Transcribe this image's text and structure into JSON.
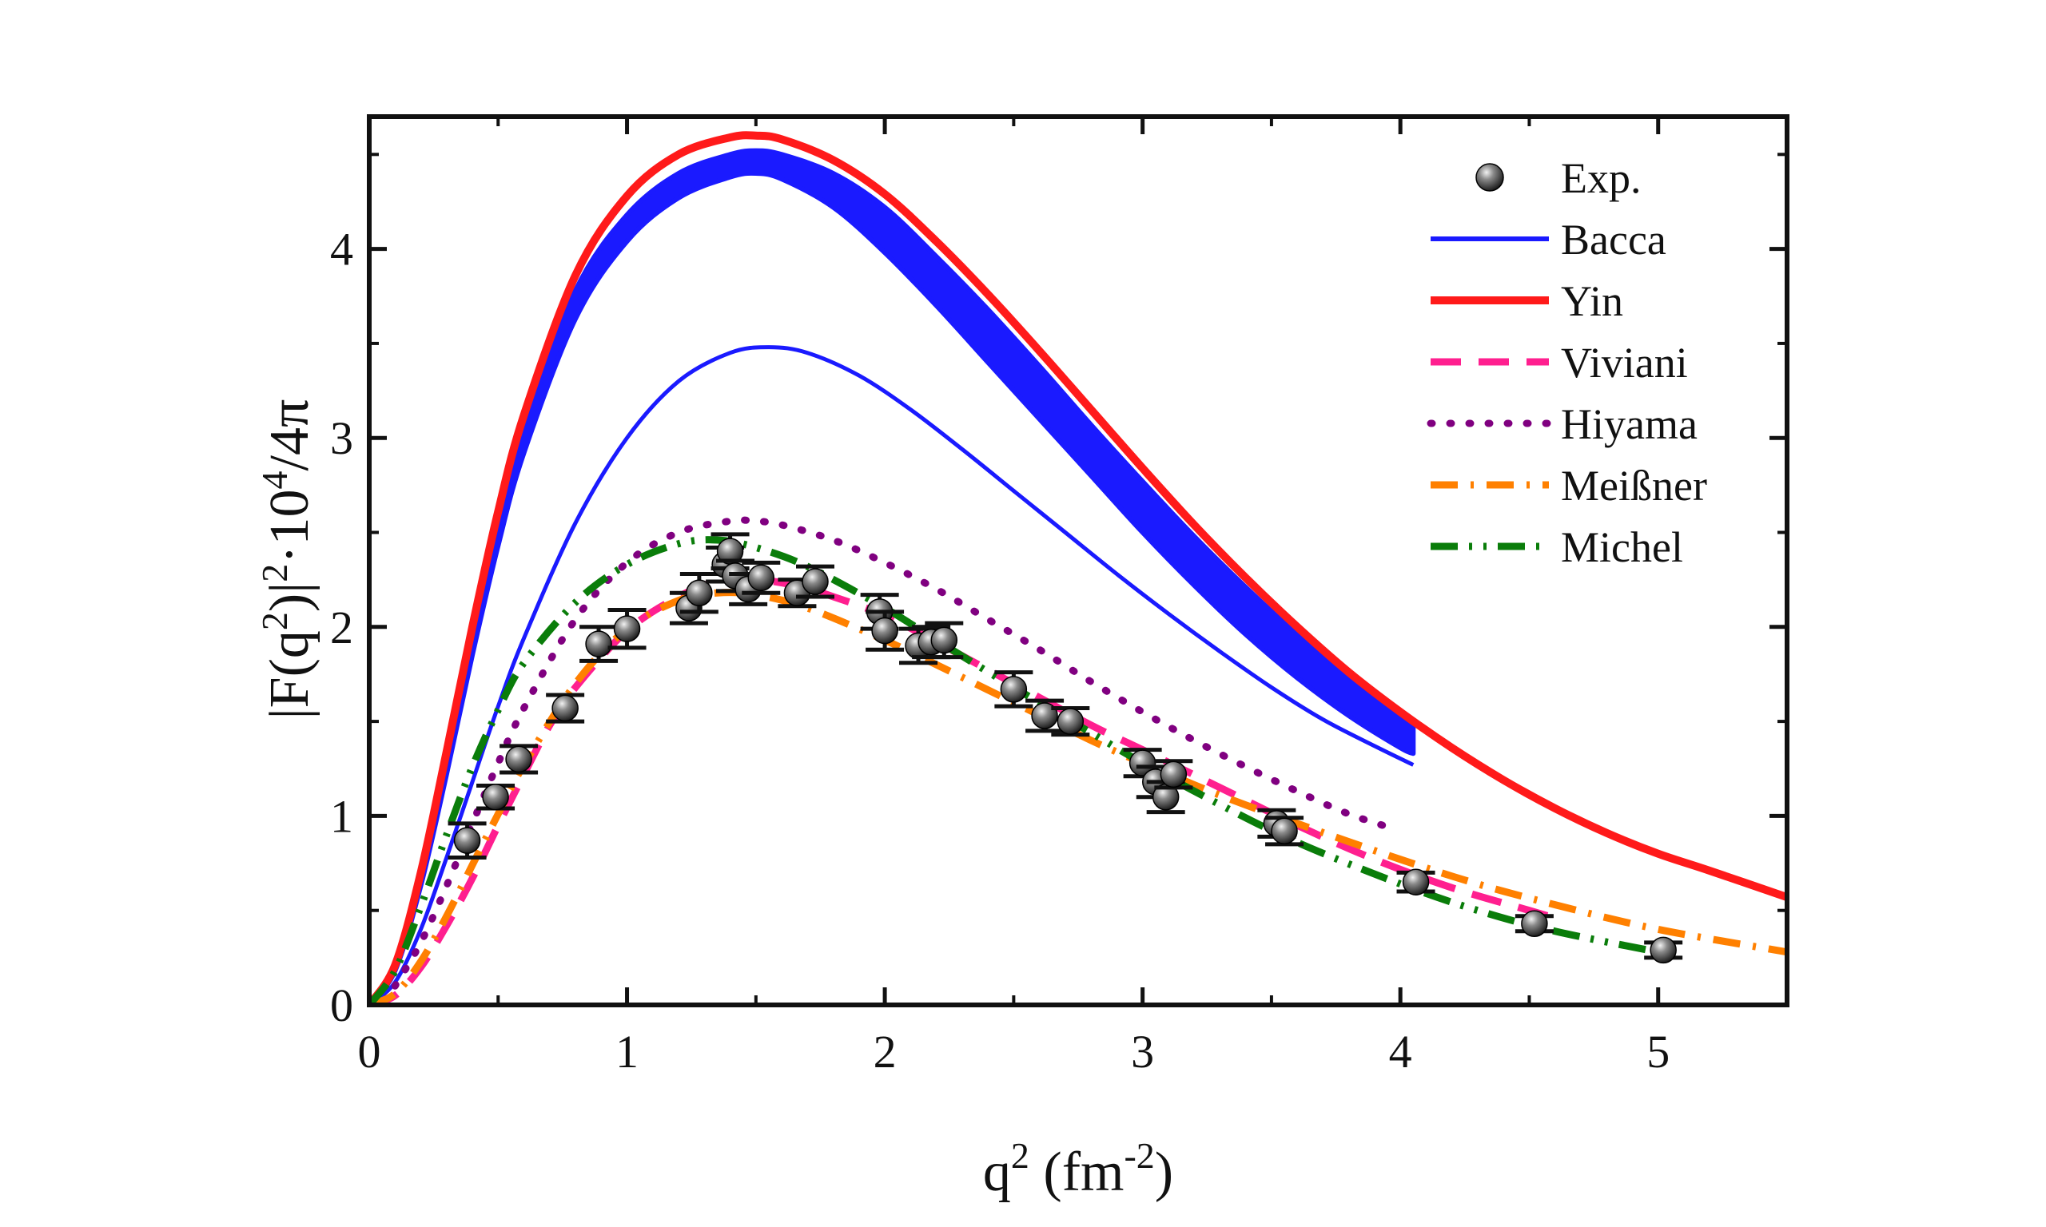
{
  "chart_data": {
    "type": "line",
    "title": "",
    "xlabel": {
      "base": "q",
      "sup": "2",
      "unit_open": " (fm",
      "unit_sup": "-2",
      "unit_close": ")"
    },
    "ylabel": {
      "part1": "|F(q",
      "sup1": "2",
      "part2": ")|",
      "sup2": "2",
      "part3": "·10",
      "sup3": "4",
      "part4": "/4π"
    },
    "xlim": [
      0,
      5.5
    ],
    "ylim": [
      0,
      4.7
    ],
    "x_ticks": [
      "0",
      "1",
      "2",
      "3",
      "4",
      "5"
    ],
    "y_ticks": [
      "0",
      "1",
      "2",
      "3",
      "4"
    ],
    "legend_position": "top-right",
    "legend": [
      "Exp.",
      "Bacca",
      "Yin",
      "Viviani",
      "Hiyama",
      "Meißner",
      "Michel"
    ],
    "colors": {
      "exp": "#111111",
      "bacca": "#1a1aff",
      "yin": "#ff1a1a",
      "viviani": "#ff1f8f",
      "hiyama": "#800080",
      "meissner": "#ff8000",
      "michel": "#0a7d0a"
    },
    "experiment": {
      "name": "Exp.",
      "points": [
        {
          "x": 0.38,
          "y": 0.87,
          "err": 0.09
        },
        {
          "x": 0.49,
          "y": 1.1,
          "err": 0.06
        },
        {
          "x": 0.58,
          "y": 1.3,
          "err": 0.07
        },
        {
          "x": 0.76,
          "y": 1.57,
          "err": 0.07
        },
        {
          "x": 0.89,
          "y": 1.91,
          "err": 0.09
        },
        {
          "x": 1.0,
          "y": 1.99,
          "err": 0.1
        },
        {
          "x": 1.24,
          "y": 2.1,
          "err": 0.08
        },
        {
          "x": 1.28,
          "y": 2.18,
          "err": 0.1
        },
        {
          "x": 1.38,
          "y": 2.33,
          "err": 0.09
        },
        {
          "x": 1.4,
          "y": 2.4,
          "err": 0.09
        },
        {
          "x": 1.42,
          "y": 2.27,
          "err": 0.08
        },
        {
          "x": 1.47,
          "y": 2.2,
          "err": 0.08
        },
        {
          "x": 1.52,
          "y": 2.26,
          "err": 0.08
        },
        {
          "x": 1.66,
          "y": 2.18,
          "err": 0.07
        },
        {
          "x": 1.73,
          "y": 2.24,
          "err": 0.08
        },
        {
          "x": 1.98,
          "y": 2.08,
          "err": 0.09
        },
        {
          "x": 2.0,
          "y": 1.98,
          "err": 0.1
        },
        {
          "x": 2.13,
          "y": 1.9,
          "err": 0.09
        },
        {
          "x": 2.18,
          "y": 1.92,
          "err": 0.08
        },
        {
          "x": 2.23,
          "y": 1.93,
          "err": 0.09
        },
        {
          "x": 2.5,
          "y": 1.67,
          "err": 0.09
        },
        {
          "x": 2.62,
          "y": 1.53,
          "err": 0.08
        },
        {
          "x": 2.72,
          "y": 1.5,
          "err": 0.07
        },
        {
          "x": 3.0,
          "y": 1.28,
          "err": 0.07
        },
        {
          "x": 3.05,
          "y": 1.18,
          "err": 0.08
        },
        {
          "x": 3.09,
          "y": 1.1,
          "err": 0.08
        },
        {
          "x": 3.12,
          "y": 1.22,
          "err": 0.07
        },
        {
          "x": 3.52,
          "y": 0.96,
          "err": 0.07
        },
        {
          "x": 3.55,
          "y": 0.92,
          "err": 0.07
        },
        {
          "x": 4.06,
          "y": 0.65,
          "err": 0.05
        },
        {
          "x": 4.52,
          "y": 0.43,
          "err": 0.04
        },
        {
          "x": 5.02,
          "y": 0.29,
          "err": 0.04
        }
      ]
    },
    "series": [
      {
        "name": "Bacca",
        "style": "band",
        "x": [
          0,
          0.1,
          0.2,
          0.3,
          0.4,
          0.5,
          0.6,
          0.8,
          1.0,
          1.2,
          1.4,
          1.5,
          1.6,
          1.8,
          2.0,
          2.2,
          2.4,
          2.6,
          2.8,
          3.0,
          3.2,
          3.4,
          3.6,
          3.8,
          4.0,
          4.05
        ],
        "upper": [
          0,
          0.2,
          0.68,
          1.3,
          1.95,
          2.55,
          3.05,
          3.78,
          4.18,
          4.4,
          4.5,
          4.52,
          4.5,
          4.4,
          4.22,
          3.96,
          3.68,
          3.38,
          3.07,
          2.77,
          2.48,
          2.21,
          1.96,
          1.74,
          1.55,
          1.5
        ],
        "lower": [
          0,
          0.18,
          0.63,
          1.22,
          1.85,
          2.43,
          2.92,
          3.63,
          4.04,
          4.27,
          4.38,
          4.4,
          4.37,
          4.22,
          3.98,
          3.7,
          3.4,
          3.1,
          2.8,
          2.5,
          2.22,
          1.96,
          1.73,
          1.53,
          1.36,
          1.33
        ]
      },
      {
        "name": "Bacca (lower curve)",
        "style": "solid-thin",
        "x": [
          0,
          0.1,
          0.2,
          0.3,
          0.4,
          0.5,
          0.6,
          0.8,
          1.0,
          1.2,
          1.4,
          1.55,
          1.7,
          1.9,
          2.1,
          2.3,
          2.5,
          2.7,
          2.9,
          3.1,
          3.3,
          3.5,
          3.7,
          3.9,
          4.05
        ],
        "y": [
          0,
          0.12,
          0.4,
          0.78,
          1.18,
          1.58,
          1.94,
          2.55,
          3.0,
          3.3,
          3.45,
          3.48,
          3.45,
          3.33,
          3.15,
          2.94,
          2.72,
          2.5,
          2.28,
          2.07,
          1.87,
          1.68,
          1.51,
          1.37,
          1.27
        ]
      },
      {
        "name": "Yin",
        "style": "solid",
        "x": [
          0,
          0.1,
          0.2,
          0.3,
          0.4,
          0.5,
          0.6,
          0.8,
          1.0,
          1.2,
          1.4,
          1.5,
          1.6,
          1.8,
          2.0,
          2.2,
          2.4,
          2.6,
          2.8,
          3.0,
          3.2,
          3.4,
          3.6,
          3.8,
          4.0,
          4.2,
          4.4,
          4.6,
          4.8,
          5.0,
          5.2,
          5.5
        ],
        "y": [
          0,
          0.21,
          0.7,
          1.34,
          2.0,
          2.61,
          3.12,
          3.86,
          4.28,
          4.5,
          4.59,
          4.6,
          4.58,
          4.47,
          4.29,
          4.04,
          3.76,
          3.46,
          3.15,
          2.84,
          2.54,
          2.26,
          2.0,
          1.76,
          1.55,
          1.36,
          1.19,
          1.04,
          0.91,
          0.8,
          0.71,
          0.57
        ]
      },
      {
        "name": "Viviani",
        "style": "dash",
        "x": [
          0,
          0.1,
          0.2,
          0.3,
          0.4,
          0.5,
          0.6,
          0.7,
          0.8,
          1.0,
          1.2,
          1.35,
          1.5,
          1.65,
          1.8,
          2.0,
          2.2,
          2.5,
          2.8,
          3.0,
          3.3,
          3.6,
          3.9,
          4.2,
          4.5,
          4.6
        ],
        "y": [
          0,
          0.05,
          0.2,
          0.42,
          0.67,
          0.95,
          1.22,
          1.48,
          1.68,
          1.98,
          2.16,
          2.24,
          2.25,
          2.22,
          2.16,
          2.06,
          1.92,
          1.7,
          1.48,
          1.35,
          1.15,
          0.95,
          0.77,
          0.62,
          0.5,
          0.46
        ]
      },
      {
        "name": "Hiyama",
        "style": "dot",
        "x": [
          0.1,
          0.2,
          0.3,
          0.4,
          0.5,
          0.6,
          0.8,
          1.0,
          1.2,
          1.4,
          1.5,
          1.6,
          1.8,
          2.0,
          2.2,
          2.4,
          2.6,
          2.8,
          3.0,
          3.2,
          3.4,
          3.6,
          3.8,
          3.98
        ],
        "y": [
          0.1,
          0.33,
          0.63,
          0.96,
          1.28,
          1.57,
          2.04,
          2.34,
          2.5,
          2.56,
          2.56,
          2.54,
          2.46,
          2.34,
          2.2,
          2.04,
          1.88,
          1.71,
          1.55,
          1.4,
          1.26,
          1.13,
          1.01,
          0.93
        ]
      },
      {
        "name": "Meißner",
        "style": "dashdot",
        "x": [
          0,
          0.1,
          0.2,
          0.3,
          0.4,
          0.5,
          0.6,
          0.8,
          1.0,
          1.2,
          1.35,
          1.5,
          1.7,
          2.0,
          2.2,
          2.5,
          2.8,
          3.0,
          3.3,
          3.6,
          4.0,
          4.3,
          4.6,
          5.0,
          5.5
        ],
        "y": [
          0,
          0.06,
          0.23,
          0.47,
          0.74,
          1.01,
          1.27,
          1.7,
          1.99,
          2.14,
          2.18,
          2.17,
          2.1,
          1.93,
          1.8,
          1.6,
          1.4,
          1.28,
          1.11,
          0.96,
          0.77,
          0.64,
          0.53,
          0.4,
          0.28
        ]
      },
      {
        "name": "Michel",
        "style": "dashdotdot",
        "x": [
          0,
          0.1,
          0.2,
          0.3,
          0.4,
          0.5,
          0.6,
          0.8,
          1.0,
          1.2,
          1.35,
          1.5,
          1.7,
          2.0,
          2.2,
          2.5,
          2.8,
          3.0,
          3.3,
          3.6,
          4.0,
          4.3,
          4.6,
          5.0
        ],
        "y": [
          0,
          0.18,
          0.52,
          0.9,
          1.26,
          1.56,
          1.81,
          2.13,
          2.33,
          2.44,
          2.46,
          2.42,
          2.32,
          2.1,
          1.93,
          1.68,
          1.44,
          1.28,
          1.06,
          0.86,
          0.64,
          0.5,
          0.39,
          0.28
        ]
      }
    ]
  }
}
